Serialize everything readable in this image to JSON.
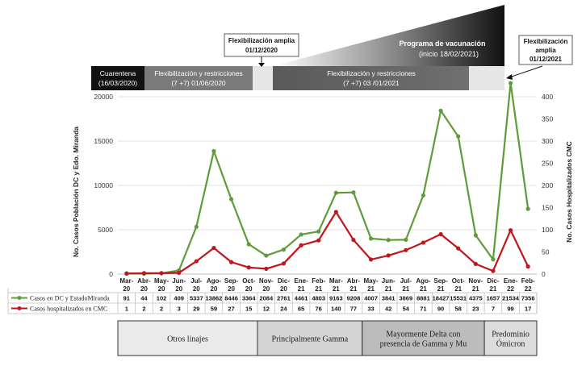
{
  "timeline": {
    "cuarentena": [
      "Cuarentena",
      "(16/03/2020)"
    ],
    "flex1": [
      "Flexibilización y restricciones",
      "(7 +7)  01/06/2020"
    ],
    "flex_amplia1": [
      "Flexibilización amplia",
      "01/12/2020"
    ],
    "flex2": [
      "Flexibilización y restricciones",
      "(7 +7)  03 /01/2021"
    ],
    "vacunacion": [
      "Programa de vacunación",
      "(inicio 18/02/2021)"
    ],
    "flex_amplia2": [
      "Flexibilización",
      "amplia",
      "01/12/2021"
    ]
  },
  "legend": {
    "series1_label": "Casos en DC y EstadoMiranda",
    "series2_label": "Casos hospitalizados en CMC"
  },
  "variants": [
    {
      "label_lines": [
        "Otros linajes"
      ],
      "fill": "#eaeaea"
    },
    {
      "label_lines": [
        "Principalmente Gamma"
      ],
      "fill": "#d4d4d4"
    },
    {
      "label_lines": [
        "Mayormente Delta con",
        "presencia de Gamma y Mu"
      ],
      "fill": "#bcbcbc"
    },
    {
      "label_lines": [
        "Predominio",
        "Ómicron"
      ],
      "fill": "#dcdcdc"
    }
  ],
  "chart_data": {
    "type": "line",
    "categories": [
      [
        "Mar-",
        "20"
      ],
      [
        "Abr-",
        "20"
      ],
      [
        "May-",
        "20"
      ],
      [
        "Jun-",
        "20"
      ],
      [
        "Jul-",
        "20"
      ],
      [
        "Ago-",
        "20"
      ],
      [
        "Sep-",
        "20"
      ],
      [
        "Oct-",
        "20"
      ],
      [
        "Nov-",
        "20"
      ],
      [
        "Dic-",
        "20"
      ],
      [
        "Ene-",
        "21"
      ],
      [
        "Feb-",
        "21"
      ],
      [
        "Mar-",
        "21"
      ],
      [
        "Abr-",
        "21"
      ],
      [
        "May-",
        "21"
      ],
      [
        "Jun-",
        "21"
      ],
      [
        "Jul-",
        "21"
      ],
      [
        "Ago-",
        "21"
      ],
      [
        "Sep-",
        "21"
      ],
      [
        "Oct-",
        "21"
      ],
      [
        "Nov-",
        "21"
      ],
      [
        "Dic-",
        "21"
      ],
      [
        "Ene-",
        "22"
      ],
      [
        "Feb-",
        "22"
      ]
    ],
    "series": [
      {
        "name": "Casos en DC y EstadoMiranda",
        "axis": "left",
        "color": "#5e9c3a",
        "values": [
          91,
          44,
          102,
          409,
          5337,
          13862,
          8446,
          3364,
          2084,
          2761,
          4461,
          4803,
          9163,
          9208,
          4007,
          3841,
          3869,
          8881,
          18427,
          15531,
          4375,
          1657,
          21534,
          7356
        ]
      },
      {
        "name": "Casos hospitalizados en CMC",
        "axis": "right",
        "color": "#c0161c",
        "values": [
          1,
          2,
          2,
          3,
          29,
          59,
          27,
          15,
          12,
          24,
          65,
          76,
          140,
          77,
          33,
          42,
          54,
          71,
          90,
          58,
          23,
          7,
          99,
          17
        ]
      }
    ],
    "table_values_series1": [
      "91",
      "44",
      "102",
      "409",
      "5337",
      "13862",
      "8446",
      "3364",
      "2084",
      "2761",
      "4461",
      "4803",
      "9163",
      "9208",
      "4007",
      "3841",
      "3869",
      "8881",
      "18427",
      "15531",
      "4375",
      "1657",
      "21534",
      "7356"
    ],
    "table_values_series2": [
      "1",
      "2",
      "2",
      "3",
      "29",
      "59",
      "27",
      "15",
      "12",
      "24",
      "65",
      "76",
      "140",
      "77",
      "33",
      "42",
      "54",
      "71",
      "90",
      "58",
      "23",
      "7",
      "99",
      "17"
    ],
    "ylabel_left": "No. Casos Población DC y Edo. Miranda",
    "ylabel_right": "No. Casos Hospitalizados CMC",
    "ylim_left": [
      0,
      20000
    ],
    "ylim_right": [
      0,
      400
    ],
    "yticks_left": [
      "0",
      "5000",
      "10000",
      "15000",
      "20000"
    ],
    "yticks_right": [
      "0",
      "50",
      "100",
      "150",
      "200",
      "250",
      "300",
      "350",
      "400"
    ],
    "grid": true
  }
}
